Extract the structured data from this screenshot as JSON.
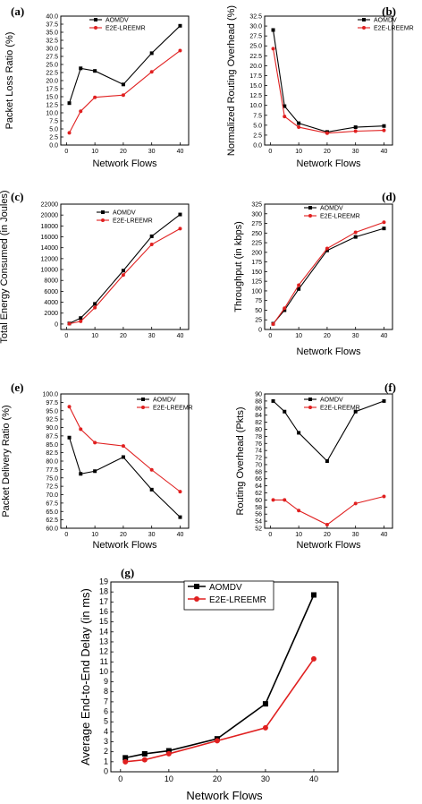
{
  "colors": {
    "aomdv": "#000000",
    "e2e": "#e02020"
  },
  "chart_data": [
    {
      "type": "line",
      "panel": "(a)",
      "xlabel": "Network Flows",
      "ylabel": "Packet Loss Ratio (%)",
      "xlim": [
        -2,
        43
      ],
      "ylim": [
        0,
        40
      ],
      "xticks": [
        0,
        10,
        20,
        30,
        40
      ],
      "yticks": [
        0,
        2.5,
        5,
        7.5,
        10,
        12.5,
        15,
        17.5,
        20,
        22.5,
        25,
        27.5,
        30,
        32.5,
        35,
        37.5,
        40
      ],
      "ytick_labels": [
        "0.0",
        "2.5",
        "5.0",
        "7.5",
        "10.0",
        "12.5",
        "15.0",
        "17.5",
        "20.0",
        "22.5",
        "25.0",
        "27.5",
        "30.0",
        "32.5",
        "35.0",
        "37.5",
        "40.0"
      ],
      "legend": "top-left",
      "x": [
        1,
        5,
        10,
        20,
        30,
        40
      ],
      "series": [
        {
          "name": "AOMDV",
          "values": [
            13.0,
            23.8,
            23.0,
            18.8,
            28.5,
            37.0
          ]
        },
        {
          "name": "E2E-LREEMR",
          "values": [
            3.8,
            10.5,
            14.8,
            15.5,
            22.7,
            29.3
          ]
        }
      ]
    },
    {
      "type": "line",
      "panel": "(b)",
      "xlabel": "Network Flows",
      "ylabel": "Normalized Routing Overhead (%)",
      "xlim": [
        -2,
        43
      ],
      "ylim": [
        0,
        32.5
      ],
      "xticks": [
        0,
        10,
        20,
        30,
        40
      ],
      "yticks": [
        0,
        2.5,
        5,
        7.5,
        10,
        12.5,
        15,
        17.5,
        20,
        22.5,
        25,
        27.5,
        30,
        32.5
      ],
      "ytick_labels": [
        "0.0",
        "2.5",
        "5.0",
        "7.5",
        "10.0",
        "12.5",
        "15.0",
        "17.5",
        "20.0",
        "22.5",
        "25.0",
        "27.5",
        "30.0",
        "32.5"
      ],
      "legend": "top-right",
      "x": [
        1,
        5,
        10,
        20,
        30,
        40
      ],
      "series": [
        {
          "name": "AOMDV",
          "values": [
            29.0,
            9.8,
            5.5,
            3.3,
            4.5,
            4.8
          ]
        },
        {
          "name": "E2E-LREEMR",
          "values": [
            24.3,
            7.2,
            4.5,
            3.0,
            3.5,
            3.7
          ]
        }
      ]
    },
    {
      "type": "line",
      "panel": "(c)",
      "xlabel": "",
      "ylabel": "Total Energy Consumed (in Joules)",
      "xlim": [
        -2,
        43
      ],
      "ylim": [
        -1000,
        22000
      ],
      "xticks": [
        0,
        10,
        20,
        30,
        40
      ],
      "yticks": [
        0,
        2000,
        4000,
        6000,
        8000,
        10000,
        12000,
        14000,
        16000,
        18000,
        20000,
        22000
      ],
      "ytick_labels": [
        "0",
        "2000",
        "4000",
        "6000",
        "8000",
        "10000",
        "12000",
        "14000",
        "16000",
        "18000",
        "20000",
        "22000"
      ],
      "legend": "top-left",
      "x": [
        1,
        5,
        10,
        20,
        30,
        40
      ],
      "series": [
        {
          "name": "AOMDV",
          "values": [
            100,
            1100,
            3700,
            9800,
            16100,
            20100
          ]
        },
        {
          "name": "E2E-LREEMR",
          "values": [
            50,
            500,
            3000,
            9000,
            14600,
            17500
          ]
        }
      ]
    },
    {
      "type": "line",
      "panel": "(d)",
      "xlabel": "Network Flows",
      "ylabel": "Throughput (in kbps)",
      "xlim": [
        -2,
        43
      ],
      "ylim": [
        0,
        325
      ],
      "xticks": [
        0,
        10,
        20,
        30,
        40
      ],
      "yticks": [
        0,
        25,
        50,
        75,
        100,
        125,
        150,
        175,
        200,
        225,
        250,
        275,
        300,
        325
      ],
      "ytick_labels": [
        "0",
        "25",
        "50",
        "75",
        "100",
        "125",
        "150",
        "175",
        "200",
        "225",
        "250",
        "275",
        "300",
        "325"
      ],
      "legend": "top-left",
      "x": [
        1,
        5,
        10,
        20,
        30,
        40
      ],
      "series": [
        {
          "name": "AOMDV",
          "values": [
            15,
            50,
            105,
            205,
            240,
            262
          ]
        },
        {
          "name": "E2E-LREEMR",
          "values": [
            14,
            55,
            115,
            210,
            252,
            278
          ]
        }
      ]
    },
    {
      "type": "line",
      "panel": "(e)",
      "xlabel": "Network Flows",
      "ylabel": "Packet Delivery Ratio (%)",
      "xlim": [
        -2,
        43
      ],
      "ylim": [
        60,
        100
      ],
      "xticks": [
        0,
        10,
        20,
        30,
        40
      ],
      "yticks": [
        60,
        62.5,
        65,
        67.5,
        70,
        72.5,
        75,
        77.5,
        80,
        82.5,
        85,
        87.5,
        90,
        92.5,
        95,
        97.5,
        100
      ],
      "ytick_labels": [
        "60.0",
        "62.5",
        "65.0",
        "67.5",
        "70.0",
        "72.5",
        "75.0",
        "77.5",
        "80.0",
        "82.5",
        "85.0",
        "87.5",
        "90.0",
        "92.5",
        "95.0",
        "97.5",
        "100.0"
      ],
      "legend": "top-right",
      "x": [
        1,
        5,
        10,
        20,
        30,
        40
      ],
      "series": [
        {
          "name": "AOMDV",
          "values": [
            87.0,
            76.2,
            77.0,
            81.2,
            71.5,
            63.3
          ]
        },
        {
          "name": "E2E-LREEMR",
          "values": [
            96.2,
            89.5,
            85.5,
            84.5,
            77.4,
            70.9
          ]
        }
      ]
    },
    {
      "type": "line",
      "panel": "(f)",
      "xlabel": "Network Flows",
      "ylabel": "Routing Overhead (Pkts)",
      "xlim": [
        -2,
        43
      ],
      "ylim": [
        52,
        90
      ],
      "xticks": [
        0,
        10,
        20,
        30,
        40
      ],
      "yticks": [
        52,
        54,
        56,
        58,
        60,
        62,
        64,
        66,
        68,
        70,
        72,
        74,
        76,
        78,
        80,
        82,
        84,
        86,
        88,
        90
      ],
      "ytick_labels": [
        "52",
        "54",
        "56",
        "58",
        "60",
        "62",
        "64",
        "66",
        "68",
        "70",
        "72",
        "74",
        "76",
        "78",
        "80",
        "82",
        "84",
        "86",
        "88",
        "90"
      ],
      "legend": "top-left",
      "x": [
        1,
        5,
        10,
        20,
        30,
        40
      ],
      "series": [
        {
          "name": "AOMDV",
          "values": [
            88,
            85,
            79,
            71,
            85,
            88
          ]
        },
        {
          "name": "E2E-LREEMR",
          "values": [
            60,
            60,
            57,
            53,
            59,
            61
          ]
        }
      ]
    },
    {
      "type": "line",
      "panel": "(g)",
      "xlabel": "Network Flows",
      "ylabel": "Average End-to-End Delay (in ms)",
      "xlim": [
        -2,
        45
      ],
      "ylim": [
        0,
        19
      ],
      "xticks": [
        0,
        10,
        20,
        30,
        40
      ],
      "yticks": [
        0,
        1,
        2,
        3,
        4,
        5,
        6,
        7,
        8,
        9,
        10,
        11,
        12,
        13,
        14,
        15,
        16,
        17,
        18,
        19
      ],
      "ytick_labels": [
        "0",
        "1",
        "2",
        "3",
        "4",
        "5",
        "6",
        "7",
        "8",
        "9",
        "10",
        "11",
        "12",
        "13",
        "14",
        "15",
        "16",
        "17",
        "18",
        "19"
      ],
      "legend": "top-left",
      "x": [
        1,
        5,
        10,
        20,
        30,
        40
      ],
      "series": [
        {
          "name": "AOMDV",
          "values": [
            1.4,
            1.8,
            2.1,
            3.3,
            6.8,
            17.7
          ]
        },
        {
          "name": "E2E-LREEMR",
          "values": [
            1.0,
            1.2,
            1.8,
            3.1,
            4.4,
            11.3
          ]
        }
      ]
    }
  ]
}
